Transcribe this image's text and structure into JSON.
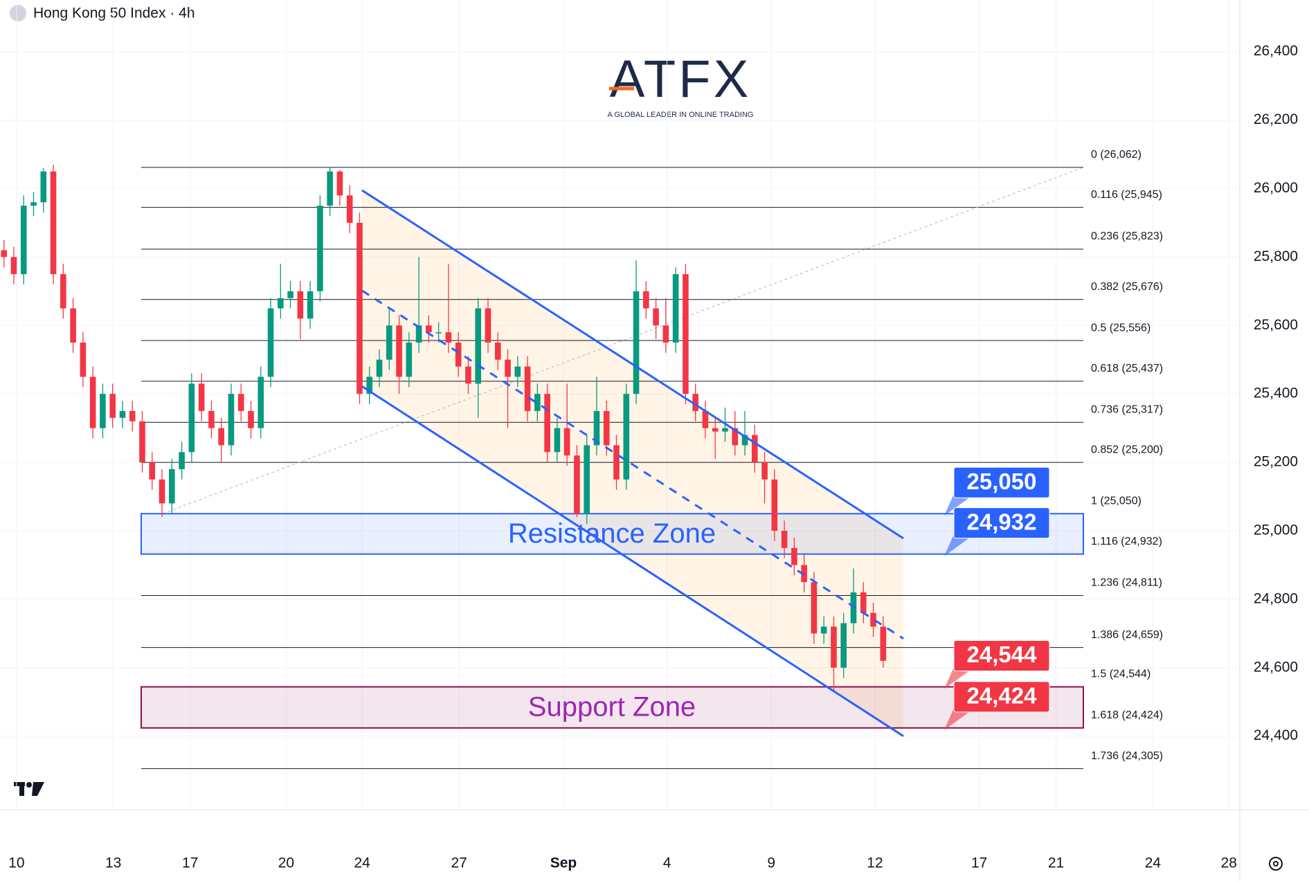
{
  "chart_data": {
    "type": "candlestick",
    "title": "Hong Kong 50 Index · 4h",
    "logo": {
      "name": "ATFX",
      "tagline": "A GLOBAL LEADER IN ONLINE TRADING"
    },
    "open": [
      25820,
      25800,
      25750,
      25950,
      25960,
      26050,
      25750,
      25650,
      25550,
      25450,
      25300,
      25400,
      25330,
      25350,
      25320,
      25200,
      25150,
      25080,
      25180,
      25230,
      25430,
      25350,
      25300,
      25250,
      25400,
      25350,
      25300,
      25450,
      25650,
      25680,
      25700,
      25620,
      25700,
      25950,
      26050,
      25980,
      25900,
      25400,
      25450,
      25500,
      25600,
      25450,
      25550,
      25600,
      25580,
      25580,
      25550,
      25480,
      25430,
      25650,
      25550,
      25500,
      25450,
      25480,
      25350,
      25400,
      25230,
      25300,
      25220,
      25050,
      25250,
      25350,
      25250,
      25150,
      25400,
      25700,
      25650,
      25600,
      25550,
      25750,
      25400,
      25350,
      25300,
      25290,
      25300,
      25250,
      25280,
      25200,
      25150,
      25000,
      24950,
      24900,
      24850,
      24700,
      24720,
      24600,
      24730,
      24820,
      24760,
      24720
    ],
    "high": [
      25850,
      25830,
      25980,
      25990,
      26060,
      26070,
      25780,
      25680,
      25580,
      25480,
      25430,
      25430,
      25380,
      25380,
      25350,
      25230,
      25180,
      25210,
      25260,
      25460,
      25460,
      25380,
      25330,
      25430,
      25430,
      25380,
      25480,
      25680,
      25780,
      25730,
      25730,
      25730,
      25980,
      26062,
      26055,
      26010,
      25930,
      25480,
      25530,
      25650,
      25630,
      25580,
      25800,
      25630,
      25610,
      25780,
      25580,
      25510,
      25680,
      25680,
      25580,
      25530,
      25510,
      25510,
      25430,
      25430,
      25330,
      25430,
      25250,
      25280,
      25450,
      25380,
      25280,
      25430,
      25790,
      25730,
      25680,
      25680,
      25770,
      25780,
      25430,
      25380,
      25330,
      25360,
      25350,
      25350,
      25310,
      25230,
      25180,
      25030,
      24980,
      24930,
      24880,
      24750,
      24750,
      24760,
      24890,
      24850,
      24790,
      24750
    ],
    "low": [
      25770,
      25720,
      25720,
      25920,
      25930,
      25720,
      25620,
      25520,
      25420,
      25270,
      25270,
      25300,
      25300,
      25290,
      25170,
      25120,
      25040,
      25050,
      25150,
      25200,
      25320,
      25270,
      25200,
      25220,
      25320,
      25270,
      25270,
      25420,
      25620,
      25650,
      25560,
      25590,
      25670,
      25920,
      25950,
      25870,
      25370,
      25370,
      25420,
      25470,
      25400,
      25420,
      25520,
      25550,
      25550,
      25520,
      25450,
      25400,
      25330,
      25520,
      25470,
      25300,
      25420,
      25320,
      25320,
      25200,
      25200,
      25190,
      25040,
      25020,
      25220,
      25220,
      25120,
      25120,
      25370,
      25620,
      25560,
      25520,
      25520,
      25370,
      25320,
      25270,
      25210,
      25260,
      25220,
      25220,
      25170,
      25080,
      24970,
      24920,
      24870,
      24820,
      24670,
      24670,
      24530,
      24570,
      24700,
      24730,
      24690,
      24600
    ],
    "close": [
      25800,
      25750,
      25950,
      25960,
      26050,
      25750,
      25650,
      25550,
      25450,
      25300,
      25400,
      25330,
      25350,
      25320,
      25200,
      25150,
      25080,
      25180,
      25230,
      25430,
      25350,
      25300,
      25250,
      25400,
      25350,
      25300,
      25450,
      25650,
      25680,
      25700,
      25620,
      25700,
      25950,
      26050,
      25980,
      25900,
      25400,
      25450,
      25500,
      25600,
      25450,
      25550,
      25600,
      25580,
      25580,
      25550,
      25480,
      25430,
      25650,
      25550,
      25500,
      25450,
      25480,
      25350,
      25400,
      25230,
      25300,
      25220,
      25050,
      25250,
      25350,
      25250,
      25150,
      25400,
      25700,
      25650,
      25600,
      25550,
      25750,
      25400,
      25350,
      25300,
      25290,
      25300,
      25250,
      25280,
      25200,
      25150,
      25000,
      24950,
      24900,
      24850,
      24700,
      24720,
      24600,
      24730,
      24820,
      24760,
      24720,
      24620
    ],
    "up_color": "#089981",
    "down_color": "#f23645",
    "xlim": [
      -0.4,
      125.1
    ],
    "xticks": [
      {
        "value": 1.27,
        "label": "10"
      },
      {
        "value": 11.07,
        "label": "13"
      },
      {
        "value": 18.85,
        "label": "17"
      },
      {
        "value": 28.57,
        "label": "20"
      },
      {
        "value": 36.26,
        "label": "24"
      },
      {
        "value": 46.07,
        "label": "27"
      },
      {
        "value": 56.64,
        "label": "Sep"
      },
      {
        "value": 67.12,
        "label": "4"
      },
      {
        "value": 77.68,
        "label": "9"
      },
      {
        "value": 88.17,
        "label": "12"
      },
      {
        "value": 98.73,
        "label": "17"
      },
      {
        "value": 106.5,
        "label": "21"
      },
      {
        "value": 116.3,
        "label": "24"
      },
      {
        "value": 124.0,
        "label": "28"
      }
    ],
    "ylim": [
      24185,
      26551
    ],
    "yticks": [
      {
        "value": 24400,
        "label": "24,400"
      },
      {
        "value": 24600,
        "label": "24,600"
      },
      {
        "value": 24800,
        "label": "24,800"
      },
      {
        "value": 25000,
        "label": "25,000"
      },
      {
        "value": 25200,
        "label": "25,200"
      },
      {
        "value": 25400,
        "label": "25,400"
      },
      {
        "value": 25600,
        "label": "25,600"
      },
      {
        "value": 25800,
        "label": "25,800"
      },
      {
        "value": 26000,
        "label": "26,000"
      },
      {
        "value": 26200,
        "label": "26,200"
      },
      {
        "value": 26400,
        "label": "26,400"
      }
    ],
    "grid": true,
    "fib_levels": [
      {
        "value": 26062,
        "label": "0 (26,062)"
      },
      {
        "value": 25945,
        "label": "0.116 (25,945)"
      },
      {
        "value": 25823,
        "label": "0.236 (25,823)"
      },
      {
        "value": 25676,
        "label": "0.382 (25,676)"
      },
      {
        "value": 25556,
        "label": "0.5 (25,556)"
      },
      {
        "value": 25437,
        "label": "0.618 (25,437)"
      },
      {
        "value": 25317,
        "label": "0.736 (25,317)"
      },
      {
        "value": 25200,
        "label": "0.852 (25,200)"
      },
      {
        "value": 25050,
        "label": "1 (25,050)"
      },
      {
        "value": 24932,
        "label": "1.116 (24,932)"
      },
      {
        "value": 24811,
        "label": "1.236 (24,811)"
      },
      {
        "value": 24659,
        "label": "1.386 (24,659)"
      },
      {
        "value": 24544,
        "label": "1.5 (24,544)"
      },
      {
        "value": 24424,
        "label": "1.618 (24,424)"
      },
      {
        "value": 24305,
        "label": "1.736 (24,305)"
      }
    ],
    "zones": [
      {
        "name": "Resistance Zone",
        "low": 24932,
        "high": 25050,
        "color": "#2962ff",
        "text_color": "#2962ff"
      },
      {
        "name": "Support Zone",
        "low": 24424,
        "high": 24544,
        "color": "#880e4f",
        "text_color": "#9c27b0"
      }
    ],
    "price_labels": [
      {
        "value": 25050,
        "label": "25,050",
        "color": "#2962ff"
      },
      {
        "value": 24932,
        "label": "24,932",
        "color": "#2962ff"
      },
      {
        "value": 24544,
        "label": "24,544",
        "color": "#f23645"
      },
      {
        "value": 24424,
        "label": "24,424",
        "color": "#f23645"
      }
    ],
    "channel": {
      "upper": [
        25995,
        24978
      ],
      "middle": [
        25702,
        24685
      ],
      "lower": [
        25422,
        24400
      ],
      "color": "#2962ff"
    }
  }
}
